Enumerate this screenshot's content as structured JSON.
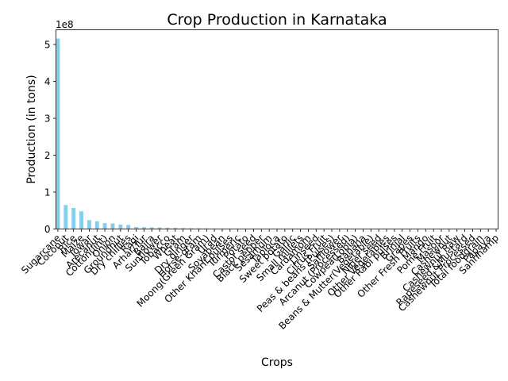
{
  "chart_data": {
    "type": "bar",
    "title": "Crop Production in Karnataka",
    "xlabel": "Crops",
    "ylabel": "Production (in tons)",
    "y_multiplier_label": "1e8",
    "y_multiplier": 100000000,
    "ylim": [
      0,
      540000000
    ],
    "yticks": [
      0,
      1,
      2,
      3,
      4,
      5
    ],
    "bar_color": "#87ceeb",
    "grid": false,
    "legend": "none",
    "categories": [
      "Sugarcane",
      "Coconut",
      "Rice",
      "Maize",
      "Jowar",
      "Arecanut",
      "Cotton(lint)",
      "Onion",
      "Groundnut",
      "Dry chillies",
      "Ragi",
      "Arhar/Tur",
      "Bajra",
      "Sunflower",
      "Tobacco",
      "Wheat",
      "Gram",
      "Dry ginger",
      "Horse-gram",
      "Moong(Green Gram)",
      "Urad",
      "Soyabean",
      "Other Kharif pulses",
      "Turmeric",
      "Potato",
      "Castor seed",
      "Black pepper",
      "Sesamum",
      "Tapioca",
      "Sweet potato",
      "Garlic",
      "Small millets",
      "Cardamom",
      "Linseed",
      "Citrus Fruit",
      "Peas & beans (Pulses)",
      "Safflower",
      "Arcanut (Processed)",
      "Cowpea(Lobia)",
      "Banana",
      "Beans & Mutter(Vegetable)",
      "Niger seed",
      "Other Vegetables",
      "Other Rabi pulses",
      "Brinjal",
      "Grapes",
      "Other Fresh Fruits",
      "Mango",
      "Pome Fruit",
      "Masoor",
      "Cashewnut",
      "Cashewnut Raw",
      "Rapeseed &Mustard",
      "Cashewnut Processed",
      "Total foodgrain",
      "Papaya",
      "Sannhamp"
    ],
    "values": [
      516000000,
      65000000,
      57000000,
      48000000,
      24000000,
      21000000,
      16000000,
      15000000,
      12000000,
      11000000,
      5500000,
      5000000,
      4500000,
      4000000,
      3500000,
      3000000,
      2500000,
      2000000,
      1800000,
      1500000,
      1200000,
      1000000,
      800000,
      700000,
      600000,
      500000,
      400000,
      350000,
      300000,
      250000,
      200000,
      180000,
      150000,
      120000,
      100000,
      90000,
      80000,
      70000,
      60000,
      50000,
      40000,
      35000,
      30000,
      25000,
      20000,
      15000,
      12000,
      10000,
      8000,
      6000,
      5000,
      4000,
      3000,
      2500,
      2000,
      1500,
      1000
    ]
  }
}
